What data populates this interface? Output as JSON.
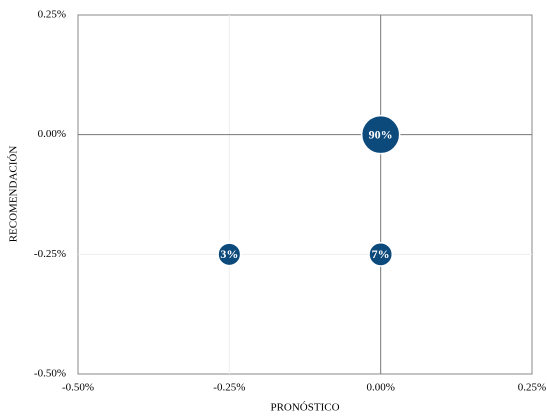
{
  "chart_data": {
    "type": "bubble",
    "x_label": "PRONÓSTICO",
    "y_label": "RECOMENDACIÓN",
    "xlim": [
      -0.5,
      0.25
    ],
    "ylim": [
      -0.5,
      0.25
    ],
    "xticks": [
      {
        "value": -0.5,
        "label": "-0.50%"
      },
      {
        "value": -0.25,
        "label": "-0.25%"
      },
      {
        "value": 0,
        "label": "0.00%"
      },
      {
        "value": 0.25,
        "label": "0.25%"
      }
    ],
    "yticks": [
      {
        "value": -0.5,
        "label": "-0.50%"
      },
      {
        "value": -0.25,
        "label": "-0.25%"
      },
      {
        "value": 0,
        "label": "0.00%"
      },
      {
        "value": 0.25,
        "label": "0.25%"
      }
    ],
    "grid": true,
    "series": [
      {
        "color": "#0d4a7c",
        "x": [
          0,
          -0.25,
          0
        ],
        "values": [
          0,
          -0.25,
          -0.25
        ],
        "sizes": [
          90,
          3,
          7
        ],
        "value_labels": [
          "90%",
          "3%",
          "7%"
        ]
      }
    ]
  }
}
